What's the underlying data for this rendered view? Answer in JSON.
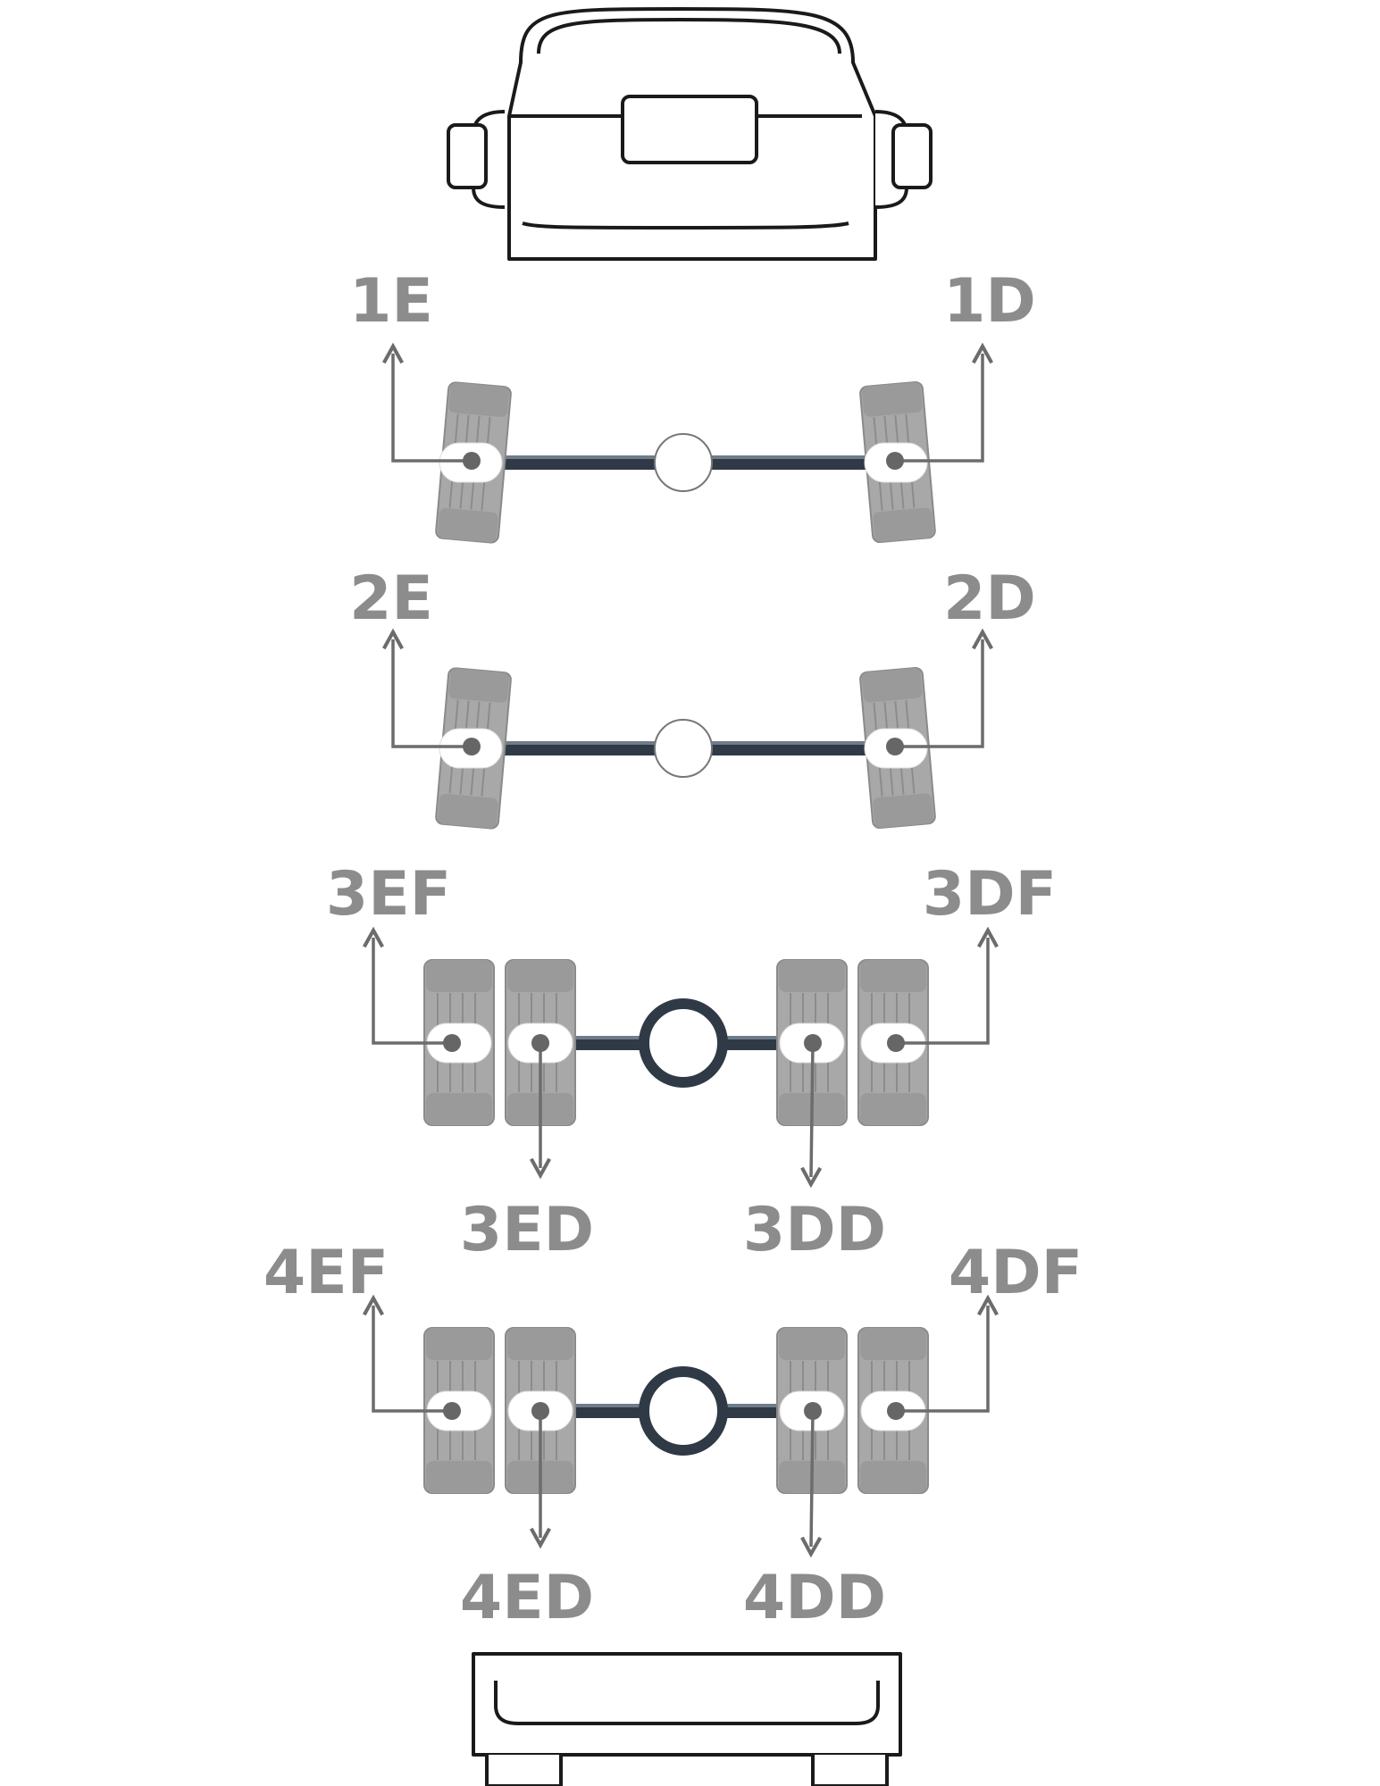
{
  "tire_positions": {
    "axle1": {
      "left": "1E",
      "right": "1D"
    },
    "axle2": {
      "left": "2E",
      "right": "2D"
    },
    "axle3": {
      "left_outer": "3EF",
      "left_inner": "3ED",
      "right_inner": "3DD",
      "right_outer": "3DF"
    },
    "axle4": {
      "left_outer": "4EF",
      "left_inner": "4ED",
      "right_inner": "4DD",
      "right_outer": "4DF"
    }
  },
  "colors": {
    "label": "#8c8c8c",
    "tire": "#a8a8a8",
    "axle": "#2f3a46",
    "leader": "#6c6c6c",
    "outline": "#1a1a1a"
  }
}
